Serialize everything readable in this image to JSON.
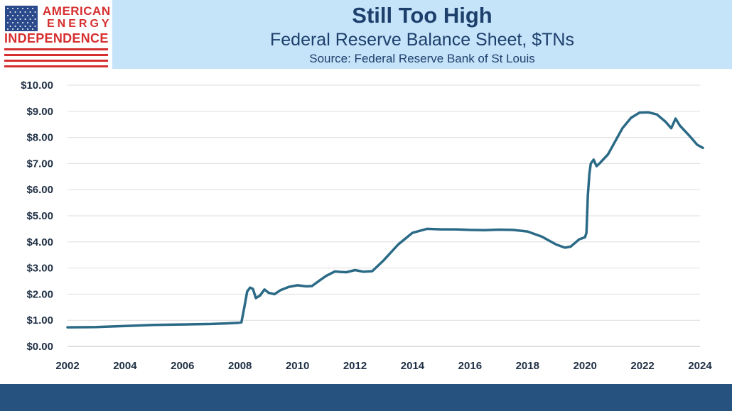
{
  "logo": {
    "line1": "AMERICAN",
    "line2": "ENERGY",
    "line3": "INDEPENDENCE"
  },
  "header": {
    "title": "Still Too High",
    "subtitle": "Federal Reserve Balance Sheet, $TNs",
    "source": "Source: Federal Reserve Bank of St Louis"
  },
  "colors": {
    "header_bg": "#c5e3f9",
    "title_text": "#1d3f6b",
    "line": "#2b6a86",
    "footer": "#26527f",
    "logo_red": "#d62e2e"
  },
  "chart_data": {
    "type": "line",
    "title": "",
    "xlabel": "",
    "ylabel": "",
    "xlim": [
      2002,
      2024
    ],
    "ylim": [
      0,
      10
    ],
    "grid": true,
    "y_ticks": [
      0,
      1,
      2,
      3,
      4,
      5,
      6,
      7,
      8,
      9,
      10
    ],
    "y_tick_labels": [
      "$0.00",
      "$1.00",
      "$2.00",
      "$3.00",
      "$4.00",
      "$5.00",
      "$6.00",
      "$7.00",
      "$8.00",
      "$9.00",
      "$10.00"
    ],
    "x_ticks": [
      2002,
      2004,
      2006,
      2008,
      2010,
      2012,
      2014,
      2016,
      2018,
      2020,
      2022,
      2024
    ],
    "x_tick_labels": [
      "2002",
      "2004",
      "2006",
      "2008",
      "2010",
      "2012",
      "2014",
      "2016",
      "2018",
      "2020",
      "2022",
      "2024"
    ],
    "series": [
      {
        "name": "",
        "x": [
          2002.0,
          2003.0,
          2004.0,
          2005.0,
          2006.0,
          2007.0,
          2007.5,
          2007.9,
          2008.05,
          2008.15,
          2008.25,
          2008.35,
          2008.45,
          2008.55,
          2008.7,
          2008.85,
          2009.0,
          2009.2,
          2009.4,
          2009.7,
          2010.0,
          2010.3,
          2010.5,
          2010.8,
          2011.0,
          2011.3,
          2011.5,
          2011.7,
          2012.0,
          2012.3,
          2012.6,
          2013.0,
          2013.5,
          2014.0,
          2014.5,
          2015.0,
          2015.5,
          2016.0,
          2016.5,
          2017.0,
          2017.5,
          2018.0,
          2018.5,
          2019.0,
          2019.3,
          2019.5,
          2019.8,
          2020.0,
          2020.05,
          2020.1,
          2020.15,
          2020.2,
          2020.3,
          2020.4,
          2020.5,
          2020.8,
          2021.0,
          2021.3,
          2021.6,
          2021.9,
          2022.2,
          2022.5,
          2022.8,
          2023.0,
          2023.15,
          2023.3,
          2023.6,
          2023.9,
          2024.1
        ],
        "y": [
          0.73,
          0.74,
          0.78,
          0.82,
          0.84,
          0.86,
          0.88,
          0.9,
          0.92,
          1.5,
          2.1,
          2.25,
          2.2,
          1.85,
          1.95,
          2.18,
          2.05,
          2.0,
          2.15,
          2.28,
          2.34,
          2.3,
          2.31,
          2.55,
          2.7,
          2.87,
          2.85,
          2.84,
          2.92,
          2.86,
          2.88,
          3.3,
          3.9,
          4.35,
          4.5,
          4.48,
          4.48,
          4.46,
          4.45,
          4.47,
          4.46,
          4.4,
          4.2,
          3.9,
          3.78,
          3.82,
          4.1,
          4.18,
          4.35,
          5.8,
          6.6,
          7.0,
          7.15,
          6.9,
          7.0,
          7.35,
          7.75,
          8.35,
          8.75,
          8.95,
          8.96,
          8.88,
          8.6,
          8.35,
          8.72,
          8.45,
          8.1,
          7.72,
          7.6
        ]
      }
    ]
  }
}
